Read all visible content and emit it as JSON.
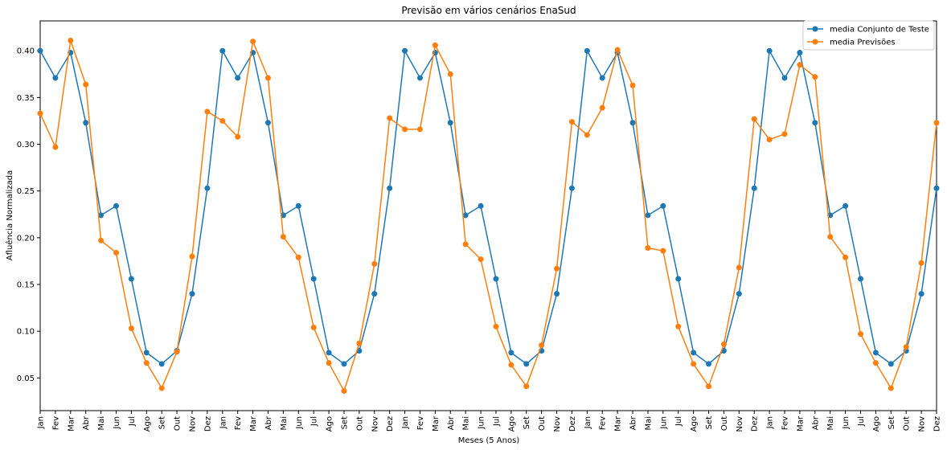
{
  "chart_data": {
    "type": "line",
    "title": "Previsão em vários cenários EnaSud",
    "xlabel": "Meses (5 Anos)",
    "ylabel": "Afluência Normalizada",
    "ylim": [
      0.015,
      0.432
    ],
    "yticks": [
      0.05,
      0.1,
      0.15,
      0.2,
      0.25,
      0.3,
      0.35,
      0.4
    ],
    "ytick_labels": [
      "0.05",
      "0.10",
      "0.15",
      "0.20",
      "0.25",
      "0.30",
      "0.35",
      "0.40"
    ],
    "grid": false,
    "legend_position": "top-right",
    "categories": [
      "Jan",
      "Fev",
      "Mar",
      "Abr",
      "Mai",
      "Jun",
      "Jul",
      "Ago",
      "Set",
      "Out",
      "Nov",
      "Dez",
      "Jan",
      "Fev",
      "Mar",
      "Abr",
      "Mai",
      "Jun",
      "Jul",
      "Ago",
      "Set",
      "Out",
      "Nov",
      "Dez",
      "Jan",
      "Fev",
      "Mar",
      "Abr",
      "Mai",
      "Jun",
      "Jul",
      "Ago",
      "Set",
      "Out",
      "Nov",
      "Dez",
      "Jan",
      "Fev",
      "Mar",
      "Abr",
      "Mai",
      "Jun",
      "Jul",
      "Ago",
      "Set",
      "Out",
      "Nov",
      "Dez",
      "Jan",
      "Fev",
      "Mar",
      "Abr",
      "Mai",
      "Jun",
      "Jul",
      "Ago",
      "Set",
      "Out",
      "Nov",
      "Dez"
    ],
    "series": [
      {
        "name": "media Conjunto de Teste",
        "color": "#1f77b4",
        "values": [
          0.4,
          0.371,
          0.398,
          0.323,
          0.224,
          0.234,
          0.156,
          0.077,
          0.065,
          0.079,
          0.14,
          0.253,
          0.4,
          0.371,
          0.398,
          0.323,
          0.224,
          0.234,
          0.156,
          0.077,
          0.065,
          0.079,
          0.14,
          0.253,
          0.4,
          0.371,
          0.398,
          0.323,
          0.224,
          0.234,
          0.156,
          0.077,
          0.065,
          0.079,
          0.14,
          0.253,
          0.4,
          0.371,
          0.398,
          0.323,
          0.224,
          0.234,
          0.156,
          0.077,
          0.065,
          0.079,
          0.14,
          0.253,
          0.4,
          0.371,
          0.398,
          0.323,
          0.224,
          0.234,
          0.156,
          0.077,
          0.065,
          0.079,
          0.14,
          0.253
        ]
      },
      {
        "name": "media Previsões",
        "color": "#ff7f0e",
        "values": [
          0.333,
          0.297,
          0.411,
          0.364,
          0.197,
          0.184,
          0.103,
          0.066,
          0.039,
          0.078,
          0.18,
          0.335,
          0.325,
          0.308,
          0.41,
          0.371,
          0.201,
          0.179,
          0.104,
          0.066,
          0.036,
          0.087,
          0.172,
          0.328,
          0.316,
          0.316,
          0.406,
          0.375,
          0.193,
          0.177,
          0.105,
          0.064,
          0.041,
          0.085,
          0.167,
          0.324,
          0.31,
          0.339,
          0.401,
          0.363,
          0.189,
          0.186,
          0.105,
          0.065,
          0.041,
          0.086,
          0.168,
          0.327,
          0.305,
          0.311,
          0.385,
          0.372,
          0.201,
          0.179,
          0.097,
          0.066,
          0.039,
          0.083,
          0.173,
          0.323
        ]
      }
    ]
  }
}
